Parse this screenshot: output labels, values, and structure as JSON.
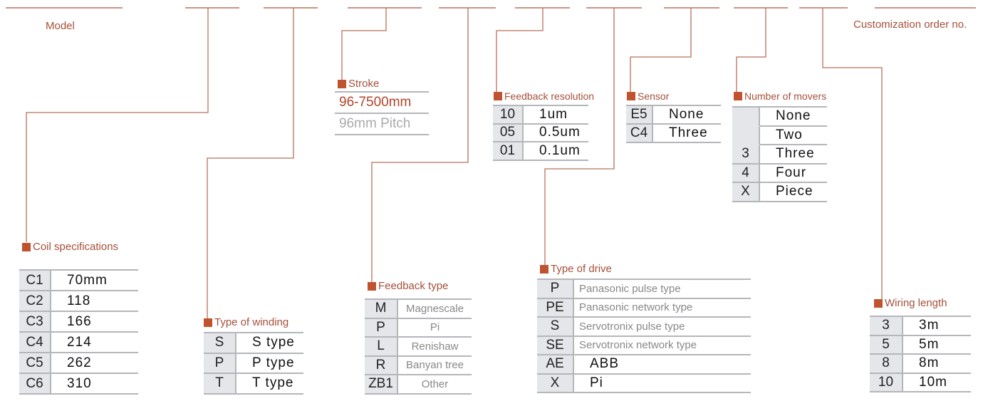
{
  "colors": {
    "line": "#b8705a",
    "label": "#a5503a",
    "marker": "#c0532f",
    "key_bg": "#e4e6ea"
  },
  "model_label": "Model",
  "custom_label": "Customization order no.",
  "stroke": {
    "title": "Stroke",
    "range": "96-7500mm",
    "pitch": "96mm Pitch"
  },
  "tables": [
    {
      "id": "coil",
      "title": "Coil specifications",
      "rows": [
        [
          "C1",
          "70mm"
        ],
        [
          "C2",
          "118"
        ],
        [
          "C3",
          "166"
        ],
        [
          "C4",
          "214"
        ],
        [
          "C5",
          "262"
        ],
        [
          "C6",
          "310"
        ]
      ]
    },
    {
      "id": "winding",
      "title": "Type of winding",
      "rows": [
        [
          "S",
          "S type"
        ],
        [
          "P",
          "P type"
        ],
        [
          "T",
          "T type"
        ]
      ]
    },
    {
      "id": "fbtype",
      "title": "Feedback type",
      "rows": [
        [
          "M",
          "Magnescale"
        ],
        [
          "P",
          "Pi"
        ],
        [
          "L",
          "Renishaw"
        ],
        [
          "R",
          "Banyan tree"
        ],
        [
          "ZB1",
          "Other"
        ]
      ]
    },
    {
      "id": "fbres",
      "title": "Feedback resolution",
      "rows": [
        [
          "10",
          "1um"
        ],
        [
          "05",
          "0.5um"
        ],
        [
          "01",
          "0.1um"
        ]
      ]
    },
    {
      "id": "drive",
      "title": "Type of drive",
      "rows": [
        [
          "P",
          "Panasonic pulse type"
        ],
        [
          "PE",
          "Panasonic network type"
        ],
        [
          "S",
          "Servotronix pulse type"
        ],
        [
          "SE",
          "Servotronix network type"
        ],
        [
          "AE",
          "ABB"
        ],
        [
          "X",
          "Pi"
        ]
      ]
    },
    {
      "id": "sensor",
      "title": "Sensor",
      "rows": [
        [
          "E5",
          "None"
        ],
        [
          "C4",
          "Three"
        ]
      ]
    },
    {
      "id": "movers",
      "title": "Number of movers",
      "rows": [
        [
          "",
          "None"
        ],
        [
          "",
          "Two"
        ],
        [
          "3",
          "Three"
        ],
        [
          "4",
          "Four"
        ],
        [
          "X",
          "Piece"
        ]
      ]
    },
    {
      "id": "wiring",
      "title": "Wiring length",
      "rows": [
        [
          "3",
          "3m"
        ],
        [
          "5",
          "5m"
        ],
        [
          "8",
          "8m"
        ],
        [
          "10",
          "10m"
        ]
      ]
    }
  ]
}
